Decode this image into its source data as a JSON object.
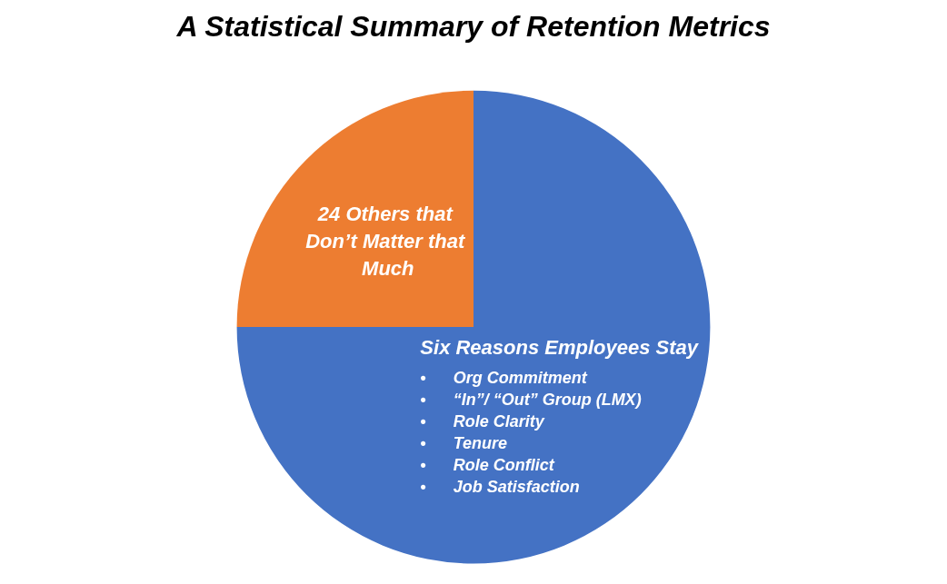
{
  "chart_data": {
    "type": "pie",
    "title": "A Statistical Summary of Retention Metrics",
    "categories": [
      "Six Reasons Employees Stay",
      "24 Others that Don’t Matter that Much"
    ],
    "values": [
      75,
      25
    ],
    "colors": [
      "#4472c4",
      "#ed7d31"
    ],
    "annotations": [
      "•      Org Commitment",
      "•      “In”/ “Out” Group (LMX)",
      "•      Role Clarity",
      "•      Tenure",
      "•      Role Conflict",
      "•      Job Satisfaction"
    ],
    "legend": false
  }
}
